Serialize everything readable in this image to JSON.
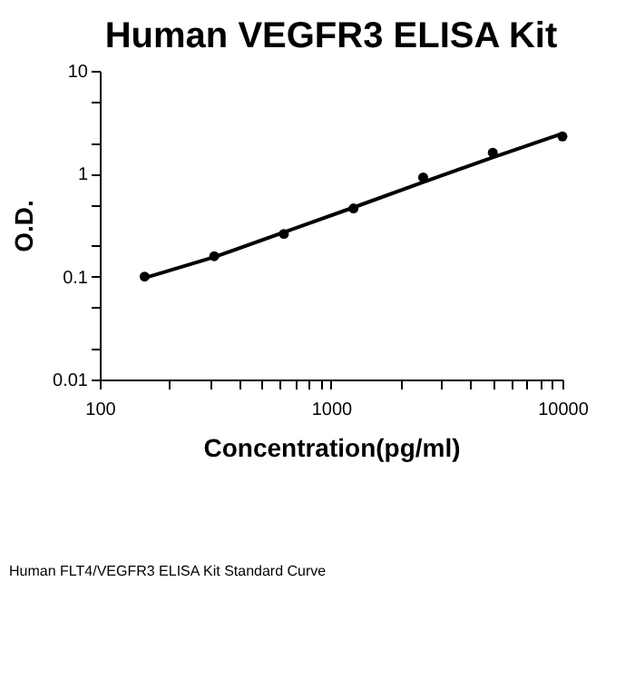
{
  "chart_data": {
    "type": "scatter",
    "title": "Human VEGFR3 ELISA Kit",
    "xlabel": "Concentration(pg/ml)",
    "ylabel": "O.D.",
    "log": "xy",
    "grid": false,
    "marker": "circle",
    "xlim": [
      100,
      10000
    ],
    "ylim": [
      0.01,
      10
    ],
    "xticks": [
      100,
      {
        "value": 200,
        "label": null
      },
      {
        "value": 300,
        "label": null
      },
      {
        "value": 400,
        "label": null
      },
      {
        "value": 500,
        "label": null
      },
      {
        "value": 600,
        "label": null
      },
      {
        "value": 700,
        "label": null
      },
      {
        "value": 800,
        "label": null
      },
      {
        "value": 900,
        "label": null
      },
      1000,
      {
        "value": 2000,
        "label": null
      },
      {
        "value": 3000,
        "label": null
      },
      {
        "value": 4000,
        "label": null
      },
      {
        "value": 5000,
        "label": null
      },
      {
        "value": 6000,
        "label": null
      },
      {
        "value": 7000,
        "label": null
      },
      {
        "value": 8000,
        "label": null
      },
      {
        "value": 9000,
        "label": null
      },
      10000
    ],
    "yticks": [
      0.01,
      {
        "value": 0.02,
        "label": null
      },
      {
        "value": 0.05,
        "label": null
      },
      0.1,
      {
        "value": 0.2,
        "label": null
      },
      {
        "value": 0.5,
        "label": null
      },
      1,
      {
        "value": 2,
        "label": null
      },
      {
        "value": 5,
        "label": null
      },
      10
    ],
    "x": [
      156.25,
      312.5,
      625,
      1250,
      2500,
      5000,
      10000
    ],
    "series": [
      {
        "color": "#000000",
        "values": [
          0.1,
          0.158,
          0.26,
          0.46,
          0.92,
          1.6,
          2.3
        ]
      },
      {
        "type": "line",
        "color": "#000000",
        "marker": "none",
        "x": [
          156.25,
          312.5,
          625,
          1250,
          2500,
          5000,
          10000
        ],
        "values": [
          0.097,
          0.155,
          0.27,
          0.47,
          0.83,
          1.44,
          2.45
        ]
      }
    ],
    "annotations": [
      "Human FLT4/VEGFR3 ELISA Kit Standard Curve"
    ]
  }
}
